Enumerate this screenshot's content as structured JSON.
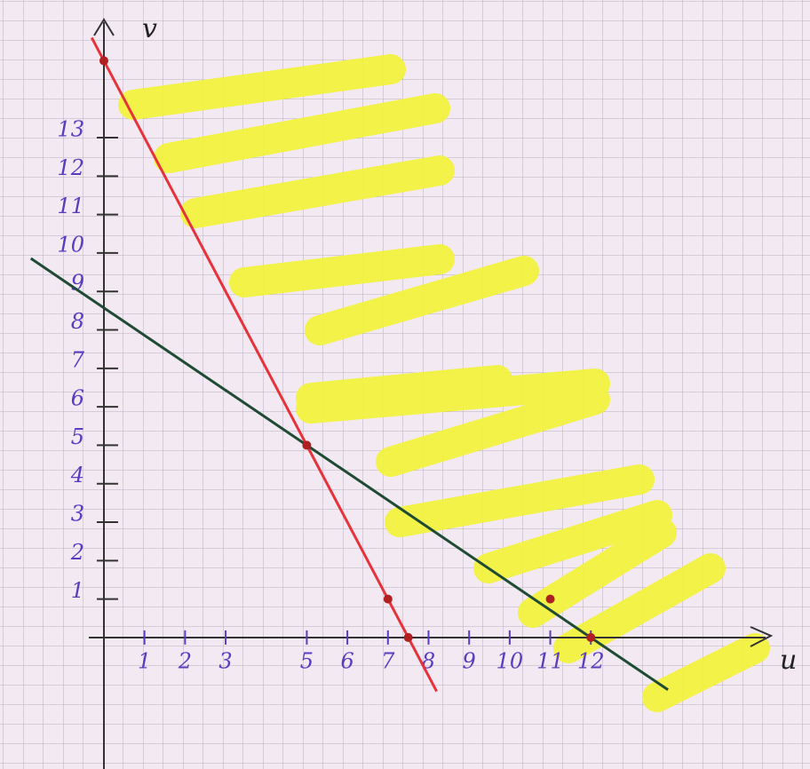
{
  "chart_data": {
    "type": "line",
    "x_label": "u",
    "y_label": "v",
    "xlim": [
      -2.56,
      17.4
    ],
    "ylim": [
      -3.42,
      16.58
    ],
    "xticks": [
      1,
      2,
      3,
      5,
      6,
      7,
      8,
      9,
      10,
      11,
      12
    ],
    "yticks": [
      1,
      2,
      3,
      4,
      5,
      6,
      7,
      8,
      9,
      10,
      11,
      12,
      13
    ],
    "series": [
      {
        "color": "#e8323a",
        "x": [
          -0.3,
          8.2
        ],
        "values": [
          15.6,
          -1.4
        ]
      },
      {
        "color": "#1f4a33",
        "x": [
          -1.8,
          13.9
        ],
        "values": [
          9.86,
          -1.36
        ]
      },
      {
        "type": "scatter",
        "color": "#b02020",
        "x": [
          0,
          7,
          7.5,
          5,
          12,
          11
        ],
        "values": [
          15,
          1,
          0,
          5,
          0,
          1
        ]
      }
    ]
  }
}
